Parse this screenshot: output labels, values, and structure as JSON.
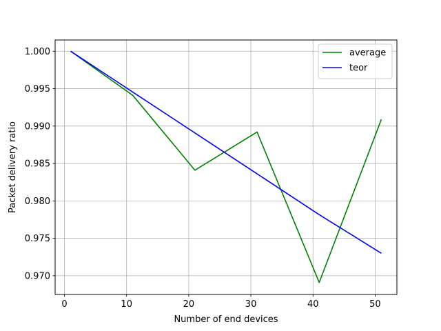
{
  "chart_data": {
    "type": "line",
    "title": "",
    "xlabel": "Number of end devices",
    "ylabel": "Packet delivery ratio",
    "xlim": [
      -1.5,
      53.5
    ],
    "ylim": [
      0.9675,
      1.0015
    ],
    "xticks": [
      0,
      10,
      20,
      30,
      40,
      50
    ],
    "yticks": [
      0.97,
      0.975,
      0.98,
      0.985,
      0.99,
      0.995,
      1.0
    ],
    "xtick_labels": [
      "0",
      "10",
      "20",
      "30",
      "40",
      "50"
    ],
    "ytick_labels": [
      "0.970",
      "0.975",
      "0.980",
      "0.985",
      "0.990",
      "0.995",
      "1.000"
    ],
    "grid": true,
    "legend_position": "top-right",
    "x": [
      1,
      11,
      21,
      31,
      41,
      51
    ],
    "series": [
      {
        "name": "average",
        "color": "#008000",
        "values": [
          1.0,
          0.9941,
          0.9841,
          0.9892,
          0.9691,
          0.9909
        ]
      },
      {
        "name": "teor",
        "color": "#0000ff",
        "values": [
          1.0,
          0.99454,
          0.98908,
          0.98362,
          0.97816,
          0.973
        ]
      }
    ]
  }
}
